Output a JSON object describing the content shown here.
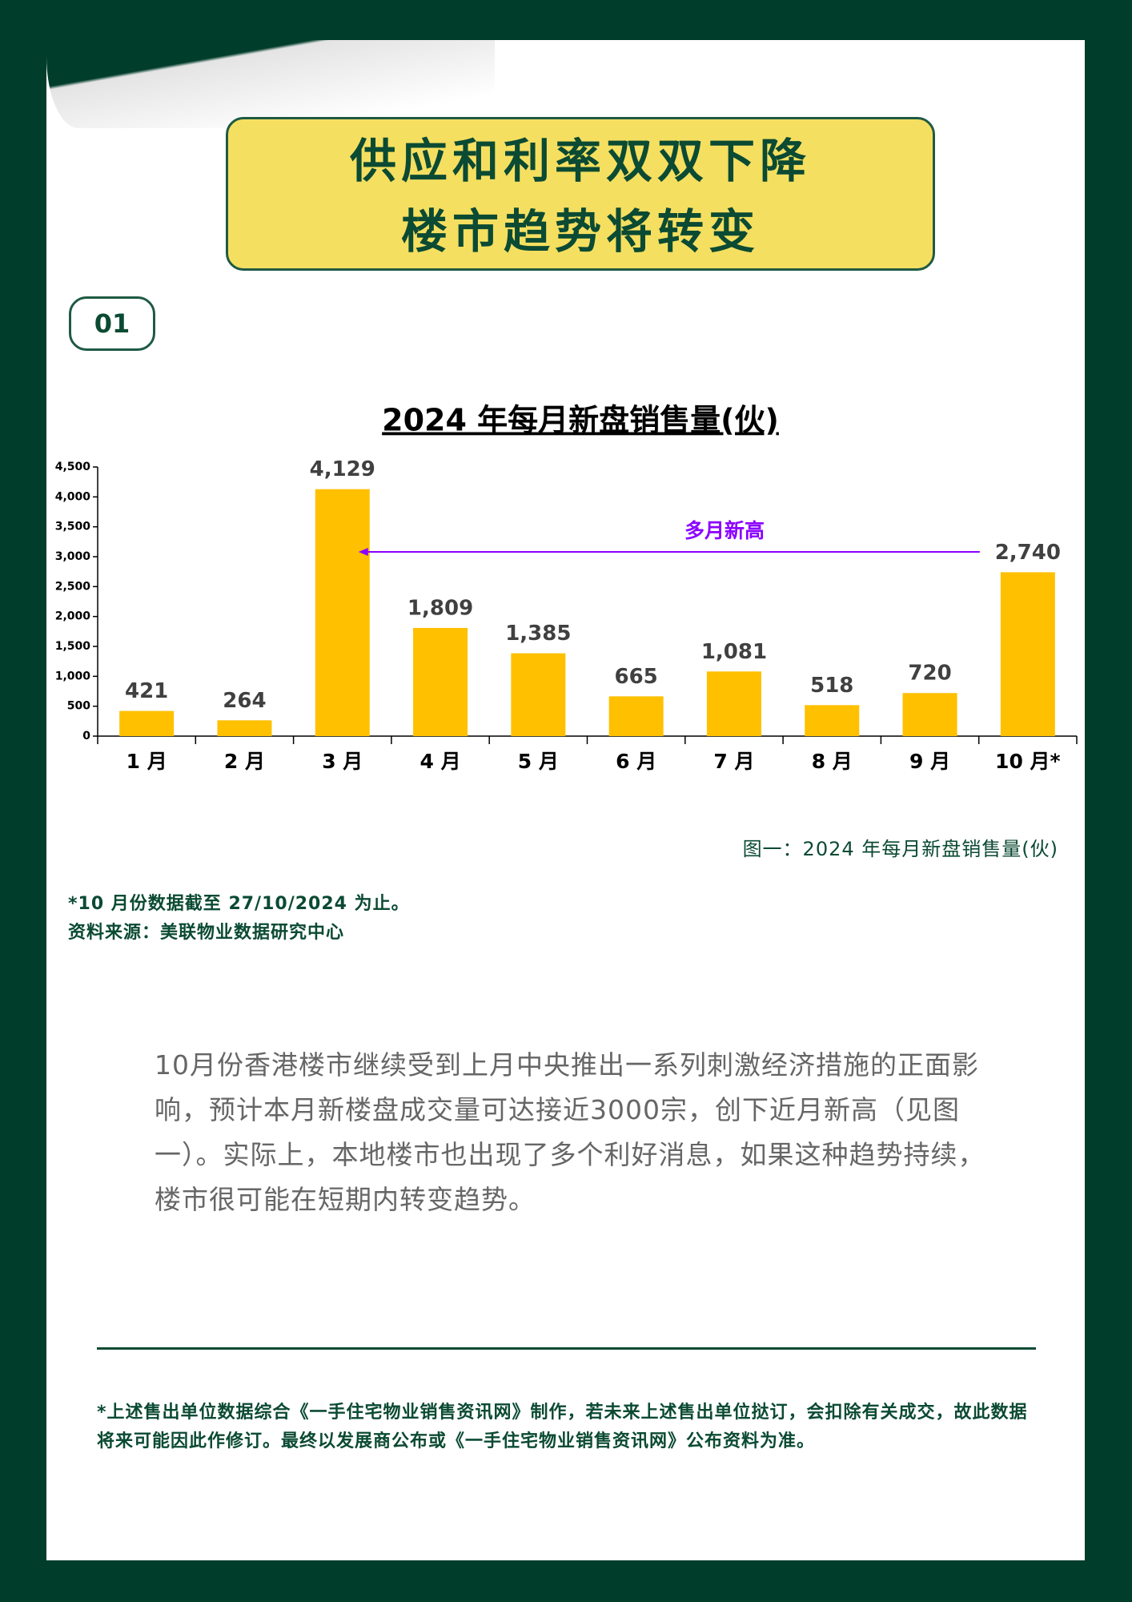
{
  "header": {
    "title_lines": [
      "供应和利率双双下降",
      "楼市趋势将转变"
    ],
    "badge": "01"
  },
  "chart_data": {
    "type": "bar",
    "title": "2024 年每月新盘销售量(伙)",
    "categories": [
      "1 月",
      "2 月",
      "3 月",
      "4 月",
      "5 月",
      "6 月",
      "7 月",
      "8 月",
      "9 月",
      "10 月*"
    ],
    "values": [
      421,
      264,
      4129,
      1809,
      1385,
      665,
      1081,
      518,
      720,
      2740
    ],
    "value_labels": [
      "421",
      "264",
      "4,129",
      "1,809",
      "1,385",
      "665",
      "1,081",
      "518",
      "720",
      "2,740"
    ],
    "color": "#ffc000",
    "ylim": [
      0,
      4500
    ],
    "yticks": [
      0,
      500,
      {
        "value": 1000,
        "label": "1,000"
      },
      {
        "value": 1500,
        "label": "1,500"
      },
      {
        "value": 2000,
        "label": "2,000"
      },
      {
        "value": 2500,
        "label": "2,500"
      },
      {
        "value": 3000,
        "label": "3,000"
      },
      {
        "value": 3500,
        "label": "3,500"
      },
      {
        "value": 4000,
        "label": "4,000"
      },
      {
        "value": 4500,
        "label": "4,500"
      }
    ],
    "grid": false,
    "annotation": "多月新高",
    "annotation_color": "#8b00ff"
  },
  "caption": "图一：2024 年每月新盘销售量(伙)",
  "notes": [
    "*10 月份数据截至 27/10/2024 为止。",
    "资料来源：美联物业数据研究中心"
  ],
  "body": "10月份香港楼市继续受到上月中央推出一系列刺激经济措施的正面影响，预计本月新楼盘成交量可达接近3000宗，创下近月新高（见图一）。实际上，本地楼市也出现了多个利好消息，如果这种趋势持续，楼市很可能在短期内转变趋势。",
  "footnote": "*上述售出单位数据综合《一手住宅物业销售资讯网》制作，若未来上述售出单位挞订，会扣除有关成交，故此数据将来可能因此作修订。最终以发展商公布或《一手住宅物业销售资讯网》公布资料为准。"
}
